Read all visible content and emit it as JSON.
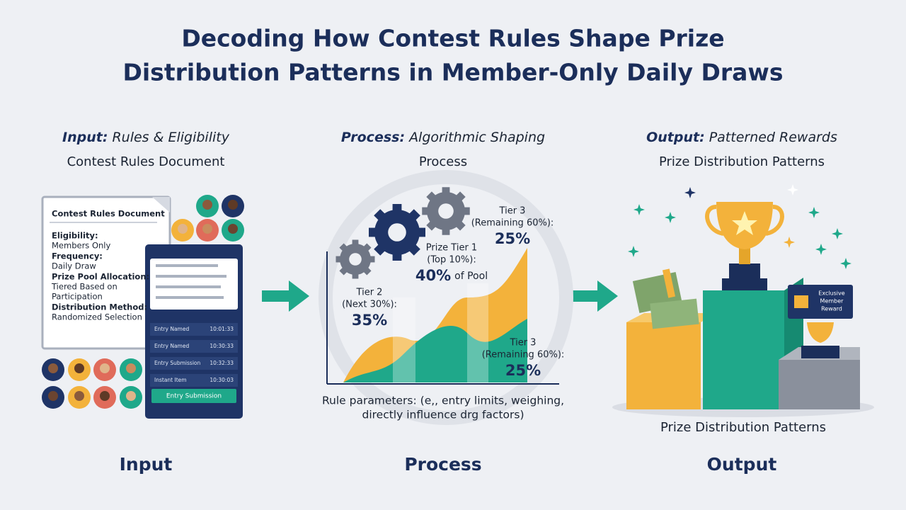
{
  "title_lines": [
    "Decoding How Contest Rules Shape Prize",
    "Distribution Patterns in Member-Only Daily Draws"
  ],
  "columns": [
    {
      "label": "Input:",
      "heading": "Rules & Eligibility",
      "subtitle": "Contest Rules Document",
      "footer": "Input"
    },
    {
      "label": "Process:",
      "heading": "Algorithmic Shaping",
      "subtitle": "Process",
      "footer": "Process"
    },
    {
      "label": "Output:",
      "heading": "Patterned Rewards",
      "subtitle": "Prize Distribution Patterns",
      "footer": "Output"
    }
  ],
  "document": {
    "title": "Contest Rules Document",
    "fields": [
      {
        "label": "Eligibility:",
        "lines": [
          "Members Only"
        ]
      },
      {
        "label": "Frequency:",
        "lines": [
          "Daily Draw"
        ]
      },
      {
        "label": "Prize Pool Allocation:",
        "lines": [
          "Tiered Based on",
          "Participation"
        ]
      },
      {
        "label": "Distribution Method:",
        "lines": [
          "Randomized Selection"
        ]
      }
    ]
  },
  "phone": {
    "rows": [
      {
        "name": "Entry Named",
        "time": "10:01:33"
      },
      {
        "name": "Entry Named",
        "time": "10:30:33"
      },
      {
        "name": "Entry Submission",
        "time": "10:32:33"
      },
      {
        "name": "Instant Item",
        "time": "10:30:03"
      }
    ],
    "button": "Entry Submission"
  },
  "process": {
    "tier3_top": {
      "name": "Tier 3",
      "detail": "(Remaining 60%):",
      "share": "25%"
    },
    "tier1": {
      "name": "Prize Tier 1",
      "detail": "(Top 10%):",
      "share": "40%",
      "suffix": "of Pool"
    },
    "tier2": {
      "name": "Tier 2",
      "detail": "(Next 30%):",
      "share": "35%"
    },
    "tier3_bottom": {
      "name": "Tier 3",
      "detail": "(Remaining 60%):",
      "share": "25%"
    },
    "caption_lines": [
      "Rule parameters: (e,, entry limits, weighing,",
      "directly influence drg factors)"
    ]
  },
  "output": {
    "badge_lines": [
      "Exclusive",
      "Member",
      "Reward"
    ],
    "caption": "Prize Distribution Patterns"
  }
}
